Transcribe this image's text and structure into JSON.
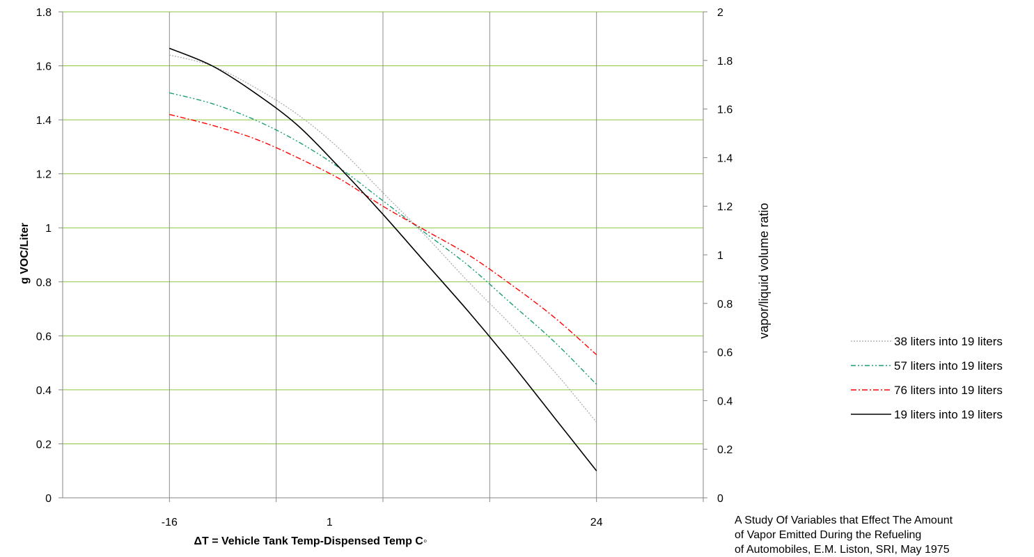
{
  "chart_data": {
    "type": "line",
    "xlabel": "ΔT = Vehicle Tank Temp-Dispensed Temp C◦",
    "ylabel": "g VOC/Liter",
    "y2label": "vapor/liquid volume  ratio",
    "x_ticks": [
      "-16",
      "1",
      "24"
    ],
    "xlim": [
      -26,
      34
    ],
    "ylim": [
      0,
      1.8
    ],
    "y_ticks": [
      "0",
      "0.2",
      "0.4",
      "0.6",
      "0.8",
      "1",
      "1.2",
      "1.4",
      "1.6",
      "1.8"
    ],
    "y2lim": [
      0,
      2
    ],
    "y2_ticks": [
      "0",
      "0.2",
      "0.4",
      "0.6",
      "0.8",
      "1",
      "1.2",
      "1.4",
      "1.6",
      "1.8",
      "2"
    ],
    "grid": true,
    "legend_position": "right",
    "series": [
      {
        "name": "38 liters into 19 liters",
        "color": "#a6a6a6",
        "dash": "dotted",
        "x": [
          -16,
          -12,
          -8,
          -4,
          0,
          4,
          8,
          12,
          16,
          20,
          24
        ],
        "values": [
          1.64,
          1.6,
          1.52,
          1.42,
          1.29,
          1.13,
          0.97,
          0.8,
          0.64,
          0.47,
          0.28
        ]
      },
      {
        "name": "57  liters into 19 liters",
        "color": "#1a9e78",
        "dash": "dashdotdot",
        "x": [
          -16,
          -12,
          -8,
          -4,
          0,
          4,
          8,
          12,
          16,
          20,
          24
        ],
        "values": [
          1.5,
          1.46,
          1.4,
          1.32,
          1.22,
          1.1,
          0.98,
          0.86,
          0.72,
          0.58,
          0.42
        ]
      },
      {
        "name": "76 liters into 19 liters",
        "color": "#ff0000",
        "dash": "dashdot",
        "x": [
          -16,
          -12,
          -8,
          -4,
          0,
          4,
          8,
          12,
          16,
          20,
          24
        ],
        "values": [
          1.42,
          1.38,
          1.33,
          1.26,
          1.18,
          1.08,
          0.99,
          0.9,
          0.79,
          0.67,
          0.53
        ]
      },
      {
        "name": "19 liters into 19 liters",
        "color": "#000000",
        "dash": "solid",
        "x": [
          -16,
          -12,
          -8,
          -4,
          0,
          4,
          8,
          12,
          16,
          20,
          24
        ],
        "values": [
          1.665,
          1.6,
          1.5,
          1.38,
          1.22,
          1.05,
          0.87,
          0.69,
          0.5,
          0.3,
          0.1
        ]
      }
    ]
  },
  "source_note": {
    "line1": "A Study Of Variables that Effect The Amount",
    "line2": "of Vapor Emitted During the Refueling",
    "line3": "of Automobiles, E.M. Liston, SRI, May 1975"
  }
}
